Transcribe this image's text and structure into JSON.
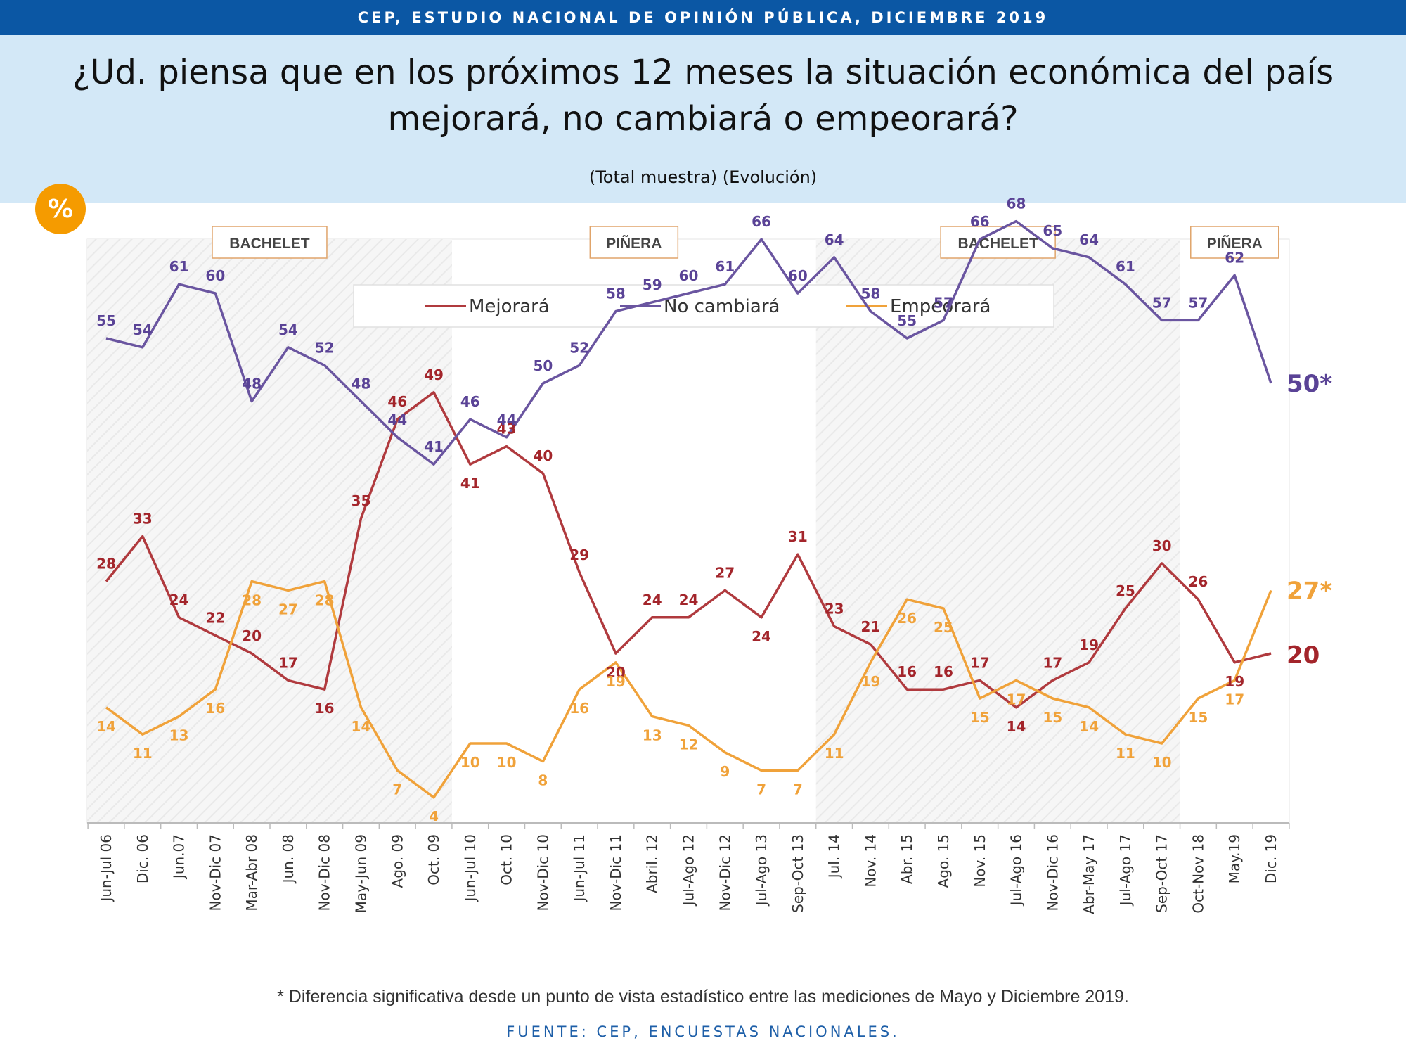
{
  "header": {
    "banner": "CEP, ESTUDIO NACIONAL DE OPINIÓN PÚBLICA, DICIEMBRE 2019"
  },
  "badge": "%",
  "footnote": "* Diferencia significativa desde un punto de vista estadístico entre las mediciones de Mayo y Diciembre 2019.",
  "source": "FUENTE: CEP, ENCUESTAS NACIONALES.",
  "colors": {
    "mejorara": "#b03a3e",
    "no_cambiara": "#6a55a0",
    "empeorara": "#f0a23a",
    "banner": "#0b57a4",
    "band": "#d3e8f7",
    "badge": "#f59b00"
  },
  "chart_data": {
    "type": "line",
    "title": "¿Ud. piensa que en los próximos 12 meses la situación económica del país mejorará, no cambiará o empeorará?",
    "subtitle": "(Total muestra) (Evolución)",
    "ylim": [
      0,
      75
    ],
    "legend_position": "top-center",
    "categories": [
      "Jun-Jul 06",
      "Dic. 06",
      "Jun.07",
      "Nov-Dic 07",
      "Mar-Abr 08",
      "Jun. 08",
      "Nov-Dic 08",
      "May-Jun 09",
      "Ago. 09",
      "Oct. 09",
      "Jun-Jul 10",
      "Oct. 10",
      "Nov-Dic 10",
      "Jun-Jul 11",
      "Nov-Dic 11",
      "Abril. 12",
      "Jul-Ago 12",
      "Nov-Dic 12",
      "Jul-Ago 13",
      "Sep-Oct 13",
      "Jul. 14",
      "Nov. 14",
      "Abr. 15",
      "Ago. 15",
      "Nov. 15",
      "Jul-Ago 16",
      "Nov-Dic 16",
      "Abr-May 17",
      "Jul-Ago 17",
      "Sep-Oct 17",
      "Oct-Nov 18",
      "May.19",
      "Dic. 19"
    ],
    "periods": [
      {
        "label": "BACHELET",
        "start": 0,
        "end": 9
      },
      {
        "label": "PIÑERA",
        "start": 10,
        "end": 19
      },
      {
        "label": "BACHELET",
        "start": 20,
        "end": 29
      },
      {
        "label": "PIÑERA",
        "start": 30,
        "end": 32
      }
    ],
    "series": [
      {
        "name": "Mejorará",
        "color": "#b03a3e",
        "values": [
          28,
          33,
          24,
          22,
          20,
          17,
          16,
          35,
          46,
          49,
          41,
          43,
          40,
          29,
          20,
          24,
          24,
          27,
          24,
          31,
          23,
          21,
          16,
          16,
          17,
          14,
          17,
          19,
          25,
          30,
          26,
          19,
          20
        ],
        "last_label": "20"
      },
      {
        "name": "No cambiará",
        "color": "#6a55a0",
        "values": [
          55,
          54,
          61,
          60,
          48,
          54,
          52,
          48,
          44,
          41,
          46,
          44,
          50,
          52,
          58,
          59,
          60,
          61,
          66,
          60,
          64,
          58,
          55,
          57,
          66,
          68,
          65,
          64,
          61,
          57,
          57,
          62,
          50
        ],
        "last_label": "50*"
      },
      {
        "name": "Empeorará",
        "color": "#f0a23a",
        "values": [
          14,
          11,
          13,
          16,
          28,
          27,
          28,
          14,
          7,
          4,
          10,
          10,
          8,
          16,
          19,
          13,
          12,
          9,
          7,
          7,
          11,
          19,
          26,
          25,
          15,
          17,
          15,
          14,
          11,
          10,
          15,
          17,
          27
        ],
        "last_label": "27*"
      }
    ]
  }
}
